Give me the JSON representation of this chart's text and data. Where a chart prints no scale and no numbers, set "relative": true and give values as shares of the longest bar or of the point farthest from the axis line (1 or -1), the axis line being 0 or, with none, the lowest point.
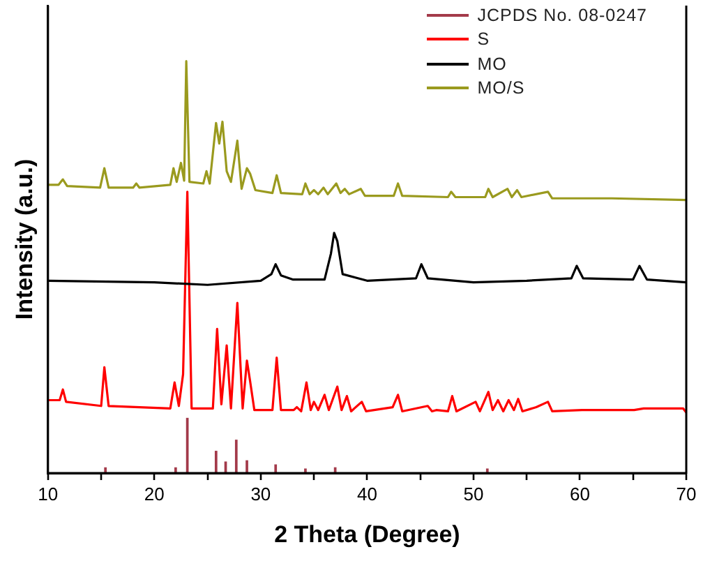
{
  "chart_data": {
    "type": "line",
    "xlabel": "2 Theta (Degree)",
    "ylabel": "Intensity (a.u.)",
    "relative": true,
    "xlim": [
      10,
      70
    ],
    "xticks": [
      10,
      {
        "value": 15,
        "label": null
      },
      20,
      {
        "value": 25,
        "label": null
      },
      30,
      {
        "value": 35,
        "label": null
      },
      40,
      {
        "value": 45,
        "label": null
      },
      50,
      {
        "value": 55,
        "label": null
      },
      60,
      {
        "value": 65,
        "label": null
      },
      70
    ],
    "legend": "top right",
    "grid": false,
    "marker": "none",
    "line_style": "solid",
    "series": [
      {
        "name": "JCPDS No. 08-0247",
        "type": "bar",
        "color": "#a33a4a",
        "x": [
          15.4,
          22.0,
          23.1,
          25.8,
          26.7,
          27.7,
          28.7,
          31.4,
          34.2,
          37.0,
          51.3
        ],
        "values": [
          0.013,
          0.013,
          0.133,
          0.053,
          0.027,
          0.08,
          0.03,
          0.02,
          0.01,
          0.013,
          0.01
        ]
      },
      {
        "name": "S",
        "color": "#ff0000",
        "x": [
          10,
          11.1,
          11.4,
          11.7,
          15.0,
          15.3,
          15.7,
          21.5,
          21.9,
          22.3,
          22.7,
          23.1,
          23.5,
          25.5,
          25.9,
          26.3,
          26.8,
          27.2,
          27.8,
          28.3,
          28.7,
          29.0,
          29.4,
          31.1,
          31.5,
          31.9,
          33.1,
          33.4,
          33.8,
          34.3,
          34.7,
          35.0,
          35.4,
          36.0,
          36.4,
          37.2,
          37.6,
          38.1,
          38.5,
          39.5,
          39.9,
          42.4,
          42.9,
          43.3,
          45.7,
          46.1,
          46.5,
          47.6,
          48.0,
          48.4,
          50.2,
          50.6,
          51.4,
          51.8,
          52.3,
          52.8,
          53.3,
          53.8,
          54.2,
          54.6,
          55.9,
          57.0,
          57.4,
          60.2,
          65.1,
          66.0,
          69.7,
          70
        ],
        "values": [
          0.177,
          0.177,
          0.203,
          0.173,
          0.163,
          0.257,
          0.163,
          0.157,
          0.22,
          0.163,
          0.24,
          0.683,
          0.157,
          0.157,
          0.35,
          0.167,
          0.31,
          0.157,
          0.413,
          0.157,
          0.273,
          0.223,
          0.153,
          0.153,
          0.28,
          0.153,
          0.153,
          0.16,
          0.15,
          0.22,
          0.153,
          0.173,
          0.153,
          0.19,
          0.153,
          0.21,
          0.153,
          0.187,
          0.15,
          0.173,
          0.15,
          0.16,
          0.19,
          0.15,
          0.163,
          0.15,
          0.153,
          0.15,
          0.187,
          0.15,
          0.173,
          0.15,
          0.197,
          0.153,
          0.177,
          0.15,
          0.177,
          0.153,
          0.18,
          0.15,
          0.16,
          0.173,
          0.15,
          0.153,
          0.153,
          0.157,
          0.157,
          0.147
        ]
      },
      {
        "name": "MO",
        "color": "#000000",
        "x": [
          10,
          20,
          25,
          30,
          31.0,
          31.4,
          31.9,
          33,
          36.0,
          36.6,
          36.9,
          37.2,
          37.7,
          40,
          44.6,
          45.1,
          45.7,
          50,
          55,
          59.2,
          59.7,
          60.3,
          65,
          65.6,
          66.3,
          70
        ],
        "values": [
          0.467,
          0.463,
          0.457,
          0.467,
          0.483,
          0.507,
          0.48,
          0.47,
          0.47,
          0.533,
          0.583,
          0.563,
          0.483,
          0.467,
          0.473,
          0.507,
          0.473,
          0.463,
          0.467,
          0.473,
          0.503,
          0.473,
          0.47,
          0.503,
          0.47,
          0.463
        ]
      },
      {
        "name": "MO/S",
        "color": "#9a9a1e",
        "x": [
          10,
          11.0,
          11.4,
          11.8,
          14.9,
          15.3,
          15.7,
          18.0,
          18.3,
          18.6,
          21.5,
          21.8,
          22.1,
          22.5,
          22.8,
          23.0,
          23.3,
          24.6,
          24.9,
          25.2,
          25.8,
          26.1,
          26.4,
          26.8,
          27.2,
          27.8,
          28.2,
          28.7,
          29.0,
          29.5,
          31.1,
          31.5,
          31.9,
          33.9,
          34.2,
          34.6,
          35.0,
          35.4,
          35.9,
          36.3,
          37.1,
          37.5,
          37.9,
          38.3,
          39.4,
          39.8,
          42.5,
          42.9,
          43.3,
          47.6,
          47.9,
          48.3,
          51.1,
          51.4,
          51.8,
          53.2,
          53.6,
          54.1,
          54.5,
          57.0,
          57.4,
          63,
          70
        ],
        "values": [
          0.7,
          0.7,
          0.713,
          0.697,
          0.693,
          0.74,
          0.693,
          0.693,
          0.703,
          0.693,
          0.7,
          0.74,
          0.707,
          0.753,
          0.71,
          1,
          0.707,
          0.703,
          0.733,
          0.703,
          0.85,
          0.8,
          0.853,
          0.733,
          0.707,
          0.807,
          0.69,
          0.74,
          0.727,
          0.687,
          0.68,
          0.723,
          0.68,
          0.677,
          0.703,
          0.677,
          0.687,
          0.677,
          0.693,
          0.677,
          0.703,
          0.68,
          0.69,
          0.677,
          0.69,
          0.673,
          0.673,
          0.703,
          0.673,
          0.67,
          0.683,
          0.67,
          0.67,
          0.69,
          0.67,
          0.69,
          0.67,
          0.687,
          0.67,
          0.683,
          0.667,
          0.667,
          0.663
        ]
      }
    ]
  }
}
